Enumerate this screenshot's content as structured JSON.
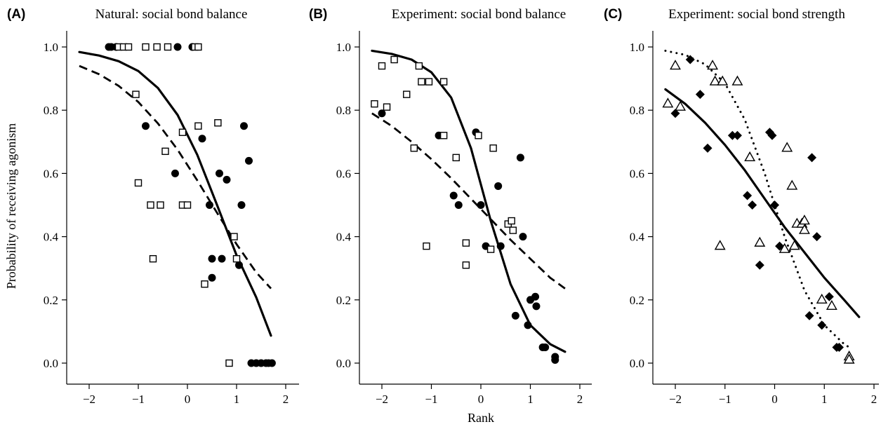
{
  "figure": {
    "ylabel": "Probability of receiving agonism",
    "xlabel": "Rank"
  },
  "chart_data": [
    {
      "type": "scatter",
      "panel_label": "(A)",
      "title": "Natural: social bond balance",
      "xlim": [
        -2.3,
        2.0
      ],
      "ylim": [
        -0.05,
        1.05
      ],
      "xticks": [
        "−2",
        "−1",
        "0",
        "1",
        "2"
      ],
      "xtick_values": [
        -2,
        -1,
        0,
        1,
        2
      ],
      "yticks": [
        "0.0",
        "0.2",
        "0.4",
        "0.6",
        "0.8",
        "1.0"
      ],
      "ytick_values": [
        0,
        0.2,
        0.4,
        0.6,
        0.8,
        1.0
      ],
      "series": [
        {
          "marker": "filled-circle",
          "points": [
            [
              -1.6,
              1
            ],
            [
              -1.55,
              1
            ],
            [
              -1.45,
              1
            ],
            [
              -0.2,
              1
            ],
            [
              0.1,
              1
            ],
            [
              -0.85,
              0.75
            ],
            [
              -0.25,
              0.6
            ],
            [
              0.3,
              0.71
            ],
            [
              0.45,
              0.5
            ],
            [
              0.5,
              0.33
            ],
            [
              0.5,
              0.27
            ],
            [
              0.65,
              0.6
            ],
            [
              0.7,
              0.33
            ],
            [
              0.8,
              0.58
            ],
            [
              1.05,
              0.31
            ],
            [
              1.1,
              0.5
            ],
            [
              1.15,
              0.75
            ],
            [
              1.25,
              0.64
            ],
            [
              1.3,
              0
            ],
            [
              1.4,
              0
            ],
            [
              1.5,
              0
            ],
            [
              1.6,
              0
            ],
            [
              1.65,
              0
            ],
            [
              1.72,
              0
            ]
          ]
        },
        {
          "marker": "open-square",
          "points": [
            [
              -1.4,
              1
            ],
            [
              -1.3,
              1
            ],
            [
              -1.2,
              1
            ],
            [
              -0.85,
              1
            ],
            [
              -0.62,
              1
            ],
            [
              -0.4,
              1
            ],
            [
              0.15,
              1
            ],
            [
              0.22,
              1
            ],
            [
              -1.05,
              0.85
            ],
            [
              -1.0,
              0.57
            ],
            [
              -0.75,
              0.5
            ],
            [
              -0.7,
              0.33
            ],
            [
              -0.55,
              0.5
            ],
            [
              -0.45,
              0.67
            ],
            [
              -0.1,
              0.73
            ],
            [
              -0.1,
              0.5
            ],
            [
              0.0,
              0.5
            ],
            [
              0.22,
              0.75
            ],
            [
              0.35,
              0.25
            ],
            [
              0.62,
              0.76
            ],
            [
              0.85,
              0
            ],
            [
              0.95,
              0.4
            ],
            [
              1.0,
              0.33
            ]
          ]
        }
      ],
      "curves": [
        {
          "style": "solid",
          "x": [
            -2.2,
            -1.8,
            -1.4,
            -1,
            -0.6,
            -0.2,
            0.2,
            0.6,
            1,
            1.4,
            1.7
          ],
          "y": [
            0.984,
            0.973,
            0.955,
            0.924,
            0.87,
            0.785,
            0.659,
            0.501,
            0.341,
            0.208,
            0.087
          ]
        },
        {
          "style": "dashed",
          "x": [
            -2.2,
            -1.8,
            -1.4,
            -1,
            -0.6,
            -0.2,
            0.2,
            0.6,
            1,
            1.4,
            1.7
          ],
          "y": [
            0.94,
            0.914,
            0.877,
            0.826,
            0.758,
            0.675,
            0.578,
            0.476,
            0.376,
            0.287,
            0.236
          ]
        }
      ]
    },
    {
      "type": "scatter",
      "panel_label": "(B)",
      "title": "Experiment: social bond balance",
      "xlim": [
        -2.3,
        2.0
      ],
      "ylim": [
        -0.05,
        1.05
      ],
      "xticks": [
        "−2",
        "−1",
        "0",
        "1",
        "2"
      ],
      "xtick_values": [
        -2,
        -1,
        0,
        1,
        2
      ],
      "yticks": [
        "0.0",
        "0.2",
        "0.4",
        "0.6",
        "0.8",
        "1.0"
      ],
      "ytick_values": [
        0,
        0.2,
        0.4,
        0.6,
        0.8,
        1.0
      ],
      "series": [
        {
          "marker": "filled-circle",
          "points": [
            [
              -2.0,
              0.79
            ],
            [
              -0.85,
              0.72
            ],
            [
              -0.1,
              0.73
            ],
            [
              -0.55,
              0.53
            ],
            [
              -0.45,
              0.5
            ],
            [
              0.0,
              0.5
            ],
            [
              0.1,
              0.37
            ],
            [
              0.35,
              0.56
            ],
            [
              0.4,
              0.37
            ],
            [
              0.7,
              0.15
            ],
            [
              0.8,
              0.65
            ],
            [
              0.85,
              0.4
            ],
            [
              0.95,
              0.12
            ],
            [
              1.0,
              0.2
            ],
            [
              1.1,
              0.21
            ],
            [
              1.12,
              0.18
            ],
            [
              1.25,
              0.05
            ],
            [
              1.3,
              0.05
            ],
            [
              1.5,
              0.02
            ],
            [
              1.5,
              0.01
            ]
          ]
        },
        {
          "marker": "open-square",
          "points": [
            [
              -2.15,
              0.82
            ],
            [
              -2.0,
              0.94
            ],
            [
              -1.9,
              0.81
            ],
            [
              -1.75,
              0.96
            ],
            [
              -1.5,
              0.85
            ],
            [
              -1.35,
              0.68
            ],
            [
              -1.25,
              0.94
            ],
            [
              -1.2,
              0.89
            ],
            [
              -1.05,
              0.89
            ],
            [
              -1.1,
              0.37
            ],
            [
              -0.75,
              0.89
            ],
            [
              -0.75,
              0.72
            ],
            [
              -0.5,
              0.65
            ],
            [
              -0.3,
              0.38
            ],
            [
              -0.3,
              0.31
            ],
            [
              -0.05,
              0.72
            ],
            [
              0.2,
              0.36
            ],
            [
              0.25,
              0.68
            ],
            [
              0.55,
              0.44
            ],
            [
              0.62,
              0.45
            ],
            [
              0.65,
              0.42
            ]
          ]
        }
      ],
      "curves": [
        {
          "style": "solid",
          "x": [
            -2.2,
            -1.8,
            -1.4,
            -1,
            -0.6,
            -0.2,
            0.2,
            0.6,
            1,
            1.4,
            1.7
          ],
          "y": [
            0.988,
            0.978,
            0.96,
            0.92,
            0.84,
            0.68,
            0.45,
            0.25,
            0.12,
            0.06,
            0.036
          ]
        },
        {
          "style": "dashed",
          "x": [
            -2.2,
            -1.8,
            -1.4,
            -1,
            -0.6,
            -0.2,
            0.2,
            0.6,
            1,
            1.4,
            1.7
          ],
          "y": [
            0.79,
            0.75,
            0.7,
            0.645,
            0.585,
            0.52,
            0.455,
            0.39,
            0.33,
            0.27,
            0.236
          ]
        }
      ]
    },
    {
      "type": "scatter",
      "panel_label": "(C)",
      "title": "Experiment: social bond strength",
      "xlim": [
        -2.3,
        2.0
      ],
      "ylim": [
        -0.05,
        1.05
      ],
      "xticks": [
        "−2",
        "−1",
        "0",
        "1",
        "2"
      ],
      "xtick_values": [
        -2,
        -1,
        0,
        1,
        2
      ],
      "yticks": [
        "0.0",
        "0.2",
        "0.4",
        "0.6",
        "0.8",
        "1.0"
      ],
      "ytick_values": [
        0,
        0.2,
        0.4,
        0.6,
        0.8,
        1.0
      ],
      "series": [
        {
          "marker": "filled-diamond",
          "points": [
            [
              -2.0,
              0.79
            ],
            [
              -1.7,
              0.96
            ],
            [
              -1.5,
              0.85
            ],
            [
              -1.35,
              0.68
            ],
            [
              -0.85,
              0.72
            ],
            [
              -0.75,
              0.72
            ],
            [
              -0.55,
              0.53
            ],
            [
              -0.45,
              0.5
            ],
            [
              -0.3,
              0.31
            ],
            [
              -0.1,
              0.73
            ],
            [
              -0.05,
              0.72
            ],
            [
              0.0,
              0.5
            ],
            [
              0.1,
              0.37
            ],
            [
              0.7,
              0.15
            ],
            [
              0.75,
              0.65
            ],
            [
              0.85,
              0.4
            ],
            [
              0.95,
              0.12
            ],
            [
              1.1,
              0.21
            ],
            [
              1.25,
              0.05
            ],
            [
              1.3,
              0.05
            ]
          ]
        },
        {
          "marker": "open-triangle",
          "points": [
            [
              -2.15,
              0.82
            ],
            [
              -2.0,
              0.94
            ],
            [
              -1.9,
              0.81
            ],
            [
              -1.25,
              0.94
            ],
            [
              -1.2,
              0.89
            ],
            [
              -1.05,
              0.89
            ],
            [
              -1.1,
              0.37
            ],
            [
              -0.75,
              0.89
            ],
            [
              -0.5,
              0.65
            ],
            [
              -0.3,
              0.38
            ],
            [
              0.2,
              0.36
            ],
            [
              0.25,
              0.68
            ],
            [
              0.35,
              0.56
            ],
            [
              0.4,
              0.37
            ],
            [
              0.45,
              0.44
            ],
            [
              0.55,
              0.44
            ],
            [
              0.6,
              0.45
            ],
            [
              0.6,
              0.42
            ],
            [
              0.95,
              0.2
            ],
            [
              1.15,
              0.18
            ],
            [
              1.5,
              0.02
            ],
            [
              1.5,
              0.01
            ]
          ]
        }
      ],
      "curves": [
        {
          "style": "solid",
          "x": [
            -2.2,
            -1.8,
            -1.4,
            -1,
            -0.6,
            -0.2,
            0.2,
            0.6,
            1,
            1.4,
            1.7
          ],
          "y": [
            0.866,
            0.82,
            0.76,
            0.69,
            0.61,
            0.52,
            0.43,
            0.35,
            0.27,
            0.2,
            0.146
          ]
        },
        {
          "style": "dotted",
          "x": [
            -2.2,
            -1.8,
            -1.4,
            -1,
            -0.6,
            -0.2,
            0.2,
            0.6,
            1,
            1.4,
            1.55
          ],
          "y": [
            0.988,
            0.975,
            0.945,
            0.885,
            0.77,
            0.6,
            0.4,
            0.23,
            0.12,
            0.06,
            0.045
          ]
        }
      ]
    }
  ]
}
